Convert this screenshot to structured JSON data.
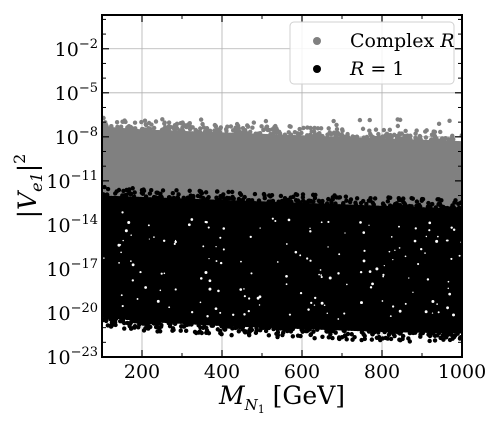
{
  "chart_data": {
    "type": "scatter",
    "title": "",
    "xlabel": "M",
    "xlabel_sub": "N",
    "xlabel_subsub": "1",
    "xlabel_unit": "[GeV]",
    "ylabel": "|V",
    "ylabel_sub": "e1",
    "ylabel_tail": "|",
    "ylabel_sup": "2",
    "x_scale": "linear",
    "y_scale": "log",
    "xlim": [
      100,
      1000
    ],
    "ylim_exponent": [
      -23,
      0.3
    ],
    "x_ticks": [
      200,
      400,
      600,
      800,
      1000
    ],
    "x_tick_labels": [
      "200",
      "400",
      "600",
      "800",
      "1000"
    ],
    "y_tick_exponents": [
      -23,
      -20,
      -17,
      -14,
      -11,
      -8,
      -5,
      -2
    ],
    "y_tick_base": "10",
    "y_tick_labels": [
      "−23",
      "−20",
      "−17",
      "−14",
      "−11",
      "−8",
      "−5",
      "−2"
    ],
    "grid": true,
    "legend_position": "top-right",
    "series": [
      {
        "name": "Complex R",
        "name_main": "Complex ",
        "name_var": "R",
        "color": "#808080",
        "band": {
          "x_range": [
            100,
            1000
          ],
          "log10_upper_edge": [
            [
              100,
              -7.3
            ],
            [
              200,
              -7.5
            ],
            [
              400,
              -7.7
            ],
            [
              600,
              -7.9
            ],
            [
              800,
              -8.1
            ],
            [
              1000,
              -8.3
            ]
          ],
          "log10_lower_edge": [
            [
              100,
              -12.0
            ],
            [
              200,
              -12.1
            ],
            [
              400,
              -12.3
            ],
            [
              600,
              -12.5
            ],
            [
              800,
              -12.7
            ],
            [
              1000,
              -12.9
            ]
          ],
          "log10_max_outliers": -6.8
        }
      },
      {
        "name": "R = 1",
        "name_var": "R",
        "name_eq": " = 1",
        "color": "#000000",
        "band": {
          "x_range": [
            100,
            1000
          ],
          "log10_upper_edge": [
            [
              100,
              -12.0
            ],
            [
              200,
              -12.1
            ],
            [
              400,
              -12.3
            ],
            [
              600,
              -12.5
            ],
            [
              800,
              -12.7
            ],
            [
              1000,
              -12.9
            ]
          ],
          "log10_lower_edge": [
            [
              100,
              -20.3
            ],
            [
              200,
              -20.6
            ],
            [
              400,
              -20.9
            ],
            [
              600,
              -21.1
            ],
            [
              800,
              -21.3
            ],
            [
              1000,
              -21.4
            ]
          ]
        }
      }
    ]
  }
}
